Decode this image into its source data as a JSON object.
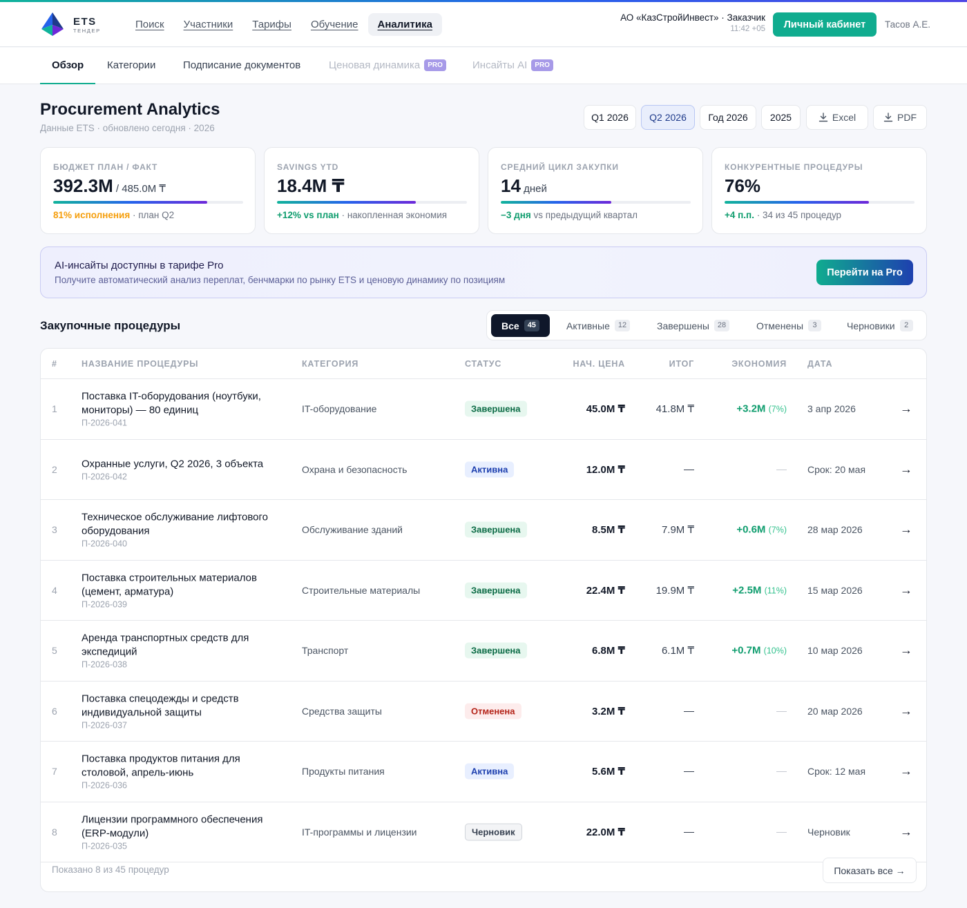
{
  "brand": {
    "name": "ETS",
    "sub": "ТЕНДЕР"
  },
  "nav": [
    {
      "label": "Поиск",
      "active": false
    },
    {
      "label": "Участники",
      "active": false
    },
    {
      "label": "Тарифы",
      "active": false
    },
    {
      "label": "Обучение",
      "active": false
    },
    {
      "label": "Аналитика",
      "active": true
    }
  ],
  "org": {
    "name": "АО «КазСтройИнвест» · Заказчик",
    "time": "11:42 +05"
  },
  "cabinet_label": "Личный кабинет",
  "user_name": "Тасов А.Е.",
  "subtabs": [
    {
      "label": "Обзор"
    },
    {
      "label": "Категории"
    },
    {
      "label": "Подписание документов"
    },
    {
      "label": "Ценовая динамика",
      "badge": "PRO"
    },
    {
      "label": "Инсайты AI",
      "badge": "PRO"
    }
  ],
  "page": {
    "title": "Procurement Analytics",
    "subtitle": "Данные ETS · обновлено сегодня · 2026"
  },
  "periods": [
    "Q1 2026",
    "Q2 2026",
    "Год 2026",
    "2025"
  ],
  "active_period": "Q2 2026",
  "exports": [
    "Excel",
    "PDF"
  ],
  "kpis": [
    {
      "label": "БЮДЖЕТ ПЛАН / ФАКТ",
      "value": "392.3M",
      "extra": " / 485.0M ₸",
      "progress": 0.81,
      "note_strong": "81% исполнения",
      "note_rest": " · план Q2"
    },
    {
      "label": "SAVINGS YTD",
      "value": "18.4M ₸",
      "extra": "",
      "progress": 0.73,
      "note_strong": "+12% vs план",
      "note_rest": " · накопленная экономия"
    },
    {
      "label": "СРЕДНИЙ ЦИКЛ ЗАКУПКИ",
      "value": "14",
      "extra": " дней",
      "progress": 0.58,
      "note_strong": "−3 дня",
      "note_rest": " vs предыдущий квартал"
    },
    {
      "label": "КОНКУРЕНТНЫЕ ПРОЦЕДУРЫ",
      "value": "76%",
      "extra": "",
      "progress": 0.76,
      "note_strong": "+4 п.п.",
      "note_rest": " · 34 из 45 процедур"
    }
  ],
  "promo": {
    "title": "AI-инсайты доступны в тарифе Pro",
    "text": "Получите автоматический анализ переплат, бенчмарки по рынку ETS и ценовую динамику по позициям",
    "button": "Перейти на Pro"
  },
  "procedures": {
    "title": "Закупочные процедуры",
    "filters": [
      {
        "label": "Все",
        "count": "45"
      },
      {
        "label": "Активные",
        "count": "12"
      },
      {
        "label": "Завершены",
        "count": "28"
      },
      {
        "label": "Отменены",
        "count": "3"
      },
      {
        "label": "Черновики",
        "count": "2"
      }
    ],
    "columns": [
      "#",
      "НАЗВАНИЕ ПРОЦЕДУРЫ",
      "КАТЕГОРИЯ",
      "СТАТУС",
      "НАЧ. ЦЕНА",
      "ИТОГ",
      "ЭКОНОМИЯ",
      "ДАТА"
    ],
    "rows": [
      {
        "num": "1",
        "name": "Поставка IT-оборудования (ноутбуки, мониторы) — 80 единиц",
        "code": "П-2026-041",
        "category": "IT-оборудование",
        "status": "Завершена",
        "status_type": "done",
        "start": "45.0M ₸",
        "result": "41.8M ₸",
        "econ": "+3.2M",
        "econ_pct": "(7%)",
        "date": "3 апр 2026"
      },
      {
        "num": "2",
        "name": "Охранные услуги, Q2 2026, 3 объекта",
        "code": "П-2026-042",
        "category": "Охрана и безопасность",
        "status": "Активна",
        "status_type": "active",
        "start": "12.0M ₸",
        "result": "—",
        "econ": "—",
        "econ_pct": "",
        "date": "Срок: 20 мая"
      },
      {
        "num": "3",
        "name": "Техническое обслуживание лифтового оборудования",
        "code": "П-2026-040",
        "category": "Обслуживание зданий",
        "status": "Завершена",
        "status_type": "done",
        "start": "8.5M ₸",
        "result": "7.9M ₸",
        "econ": "+0.6M",
        "econ_pct": "(7%)",
        "date": "28 мар 2026"
      },
      {
        "num": "4",
        "name": "Поставка строительных материалов (цемент, арматура)",
        "code": "П-2026-039",
        "category": "Строительные материалы",
        "status": "Завершена",
        "status_type": "done",
        "start": "22.4M ₸",
        "result": "19.9M ₸",
        "econ": "+2.5M",
        "econ_pct": "(11%)",
        "date": "15 мар 2026"
      },
      {
        "num": "5",
        "name": "Аренда транспортных средств для экспедиций",
        "code": "П-2026-038",
        "category": "Транспорт",
        "status": "Завершена",
        "status_type": "done",
        "start": "6.8M ₸",
        "result": "6.1M ₸",
        "econ": "+0.7M",
        "econ_pct": "(10%)",
        "date": "10 мар 2026"
      },
      {
        "num": "6",
        "name": "Поставка спецодежды и средств индивидуальной защиты",
        "code": "П-2026-037",
        "category": "Средства защиты",
        "status": "Отменена",
        "status_type": "cancel",
        "start": "3.2M ₸",
        "result": "—",
        "econ": "—",
        "econ_pct": "",
        "date": "20 мар 2026"
      },
      {
        "num": "7",
        "name": "Поставка продуктов питания для столовой, апрель-июнь",
        "code": "П-2026-036",
        "category": "Продукты питания",
        "status": "Активна",
        "status_type": "active",
        "start": "5.6M ₸",
        "result": "—",
        "econ": "—",
        "econ_pct": "",
        "date": "Срок: 12 мая"
      },
      {
        "num": "8",
        "name": "Лицензии программного обеспечения (ERP-модули)",
        "code": "П-2026-035",
        "category": "IT-программы и лицензии",
        "status": "Черновик",
        "status_type": "draft",
        "start": "22.0M ₸",
        "result": "—",
        "econ": "—",
        "econ_pct": "",
        "date": "Черновик"
      }
    ],
    "footer_text": "Показано 8 из 45 процедур",
    "show_all": "Показать все →"
  },
  "icons": {
    "logo": "ets-logo-icon",
    "download": "download-icon",
    "row_arrow": "arrow-right-icon"
  },
  "colors": {
    "accent": "#10ac8f",
    "brand_blue": "#2563eb",
    "pro_purple": "#a79ae8"
  }
}
